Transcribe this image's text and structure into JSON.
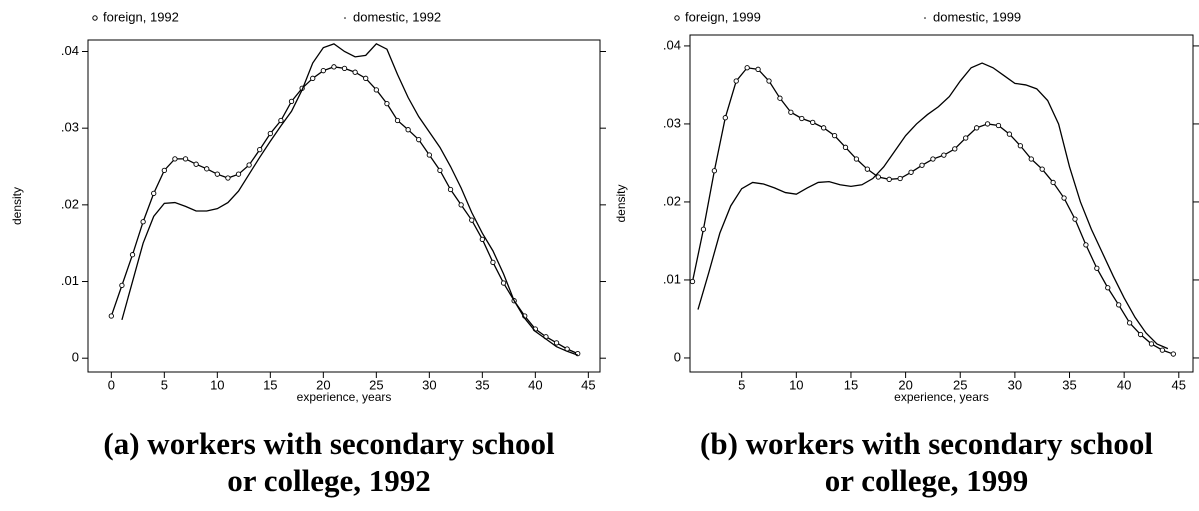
{
  "chart_data": [
    {
      "type": "line",
      "caption": [
        "(a) workers with secondary school",
        "or college, 1992"
      ],
      "xlabel": "experience, years",
      "ylabel": "density",
      "xlim": [
        -2.2,
        46.1
      ],
      "ylim": [
        -0.0018,
        0.0415
      ],
      "xticks": [
        0,
        5,
        10,
        15,
        20,
        25,
        30,
        35,
        40,
        45
      ],
      "yticks": [
        0,
        {
          "value": 0.01,
          "label": ".01"
        },
        {
          "value": 0.02,
          "label": ".02"
        },
        {
          "value": 0.03,
          "label": ".03"
        },
        {
          "value": 0.04,
          "label": ".04"
        }
      ],
      "series": [
        {
          "name": "foreign, 1992",
          "color": "#000",
          "marker": "circle",
          "x": [
            0,
            1,
            2,
            3,
            4,
            5,
            6,
            7,
            8,
            9,
            10,
            11,
            12,
            13,
            14,
            15,
            16,
            17,
            18,
            19,
            20,
            21,
            22,
            23,
            24,
            25,
            26,
            27,
            28,
            29,
            30,
            31,
            32,
            33,
            34,
            35,
            36,
            37,
            38,
            39,
            40,
            41,
            42,
            43,
            44
          ],
          "values": [
            0.0055,
            0.0095,
            0.0135,
            0.0178,
            0.0215,
            0.0245,
            0.026,
            0.026,
            0.0253,
            0.0247,
            0.024,
            0.0235,
            0.024,
            0.0252,
            0.0272,
            0.0293,
            0.031,
            0.0335,
            0.0352,
            0.0365,
            0.0375,
            0.038,
            0.0378,
            0.0373,
            0.0365,
            0.035,
            0.0332,
            0.031,
            0.0298,
            0.0285,
            0.0265,
            0.0245,
            0.022,
            0.02,
            0.018,
            0.0155,
            0.0125,
            0.0098,
            0.0075,
            0.0055,
            0.0038,
            0.0028,
            0.002,
            0.0012,
            0.0006
          ]
        },
        {
          "name": "domestic, 1992",
          "color": "#000",
          "marker": "dot",
          "x": [
            1,
            2,
            3,
            4,
            5,
            6,
            7,
            8,
            9,
            10,
            11,
            12,
            13,
            14,
            15,
            16,
            17,
            18,
            19,
            20,
            21,
            22,
            23,
            24,
            25,
            26,
            27,
            28,
            29,
            30,
            31,
            32,
            33,
            34,
            35,
            36,
            37,
            38,
            39,
            40,
            41,
            42,
            43,
            44
          ],
          "values": [
            0.005,
            0.01,
            0.015,
            0.0185,
            0.0202,
            0.0203,
            0.0198,
            0.0192,
            0.0192,
            0.0195,
            0.0203,
            0.0218,
            0.024,
            0.0262,
            0.0283,
            0.0303,
            0.0322,
            0.035,
            0.0385,
            0.0405,
            0.041,
            0.04,
            0.0393,
            0.0395,
            0.041,
            0.0403,
            0.037,
            0.034,
            0.0315,
            0.0295,
            0.0275,
            0.025,
            0.0222,
            0.019,
            0.0163,
            0.014,
            0.011,
            0.0075,
            0.0052,
            0.0035,
            0.0025,
            0.0015,
            0.0009,
            0.0004
          ]
        }
      ]
    },
    {
      "type": "line",
      "caption": [
        "(b) workers with secondary school",
        "or college, 1999"
      ],
      "xlabel": "experience, years",
      "ylabel": "density",
      "xlim": [
        0.27,
        46.3
      ],
      "ylim": [
        -0.0018,
        0.0414
      ],
      "xticks": [
        5,
        10,
        15,
        20,
        25,
        30,
        35,
        40,
        45
      ],
      "yticks": [
        0,
        {
          "value": 0.01,
          "label": ".01"
        },
        {
          "value": 0.02,
          "label": ".02"
        },
        {
          "value": 0.03,
          "label": ".03"
        },
        {
          "value": 0.04,
          "label": ".04"
        }
      ],
      "series": [
        {
          "name": "foreign, 1999",
          "color": "#000",
          "marker": "circle",
          "x": [
            0.5,
            1.5,
            2.5,
            3.5,
            4.5,
            5.5,
            6.5,
            7.5,
            8.5,
            9.5,
            10.5,
            11.5,
            12.5,
            13.5,
            14.5,
            15.5,
            16.5,
            17.5,
            18.5,
            19.5,
            20.5,
            21.5,
            22.5,
            23.5,
            24.5,
            25.5,
            26.5,
            27.5,
            28.5,
            29.5,
            30.5,
            31.5,
            32.5,
            33.5,
            34.5,
            35.5,
            36.5,
            37.5,
            38.5,
            39.5,
            40.5,
            41.5,
            42.5,
            43.5,
            44.5
          ],
          "values": [
            0.0098,
            0.0165,
            0.024,
            0.0308,
            0.0355,
            0.0372,
            0.037,
            0.0355,
            0.0333,
            0.0315,
            0.0307,
            0.0302,
            0.0295,
            0.0285,
            0.027,
            0.0255,
            0.0242,
            0.0232,
            0.0229,
            0.023,
            0.0238,
            0.0247,
            0.0255,
            0.026,
            0.0268,
            0.0282,
            0.0295,
            0.03,
            0.0298,
            0.0287,
            0.0272,
            0.0255,
            0.0242,
            0.0225,
            0.0205,
            0.0178,
            0.0145,
            0.0115,
            0.009,
            0.0068,
            0.0045,
            0.003,
            0.0018,
            0.001,
            0.0005
          ]
        },
        {
          "name": "domestic, 1999",
          "color": "#000",
          "marker": "dot",
          "x": [
            1,
            2,
            3,
            4,
            5,
            6,
            7,
            8,
            9,
            10,
            11,
            12,
            13,
            14,
            15,
            16,
            17,
            18,
            19,
            20,
            21,
            22,
            23,
            24,
            25,
            26,
            27,
            28,
            29,
            30,
            31,
            32,
            33,
            34,
            35,
            36,
            37,
            38,
            39,
            40,
            41,
            42,
            43,
            44
          ],
          "values": [
            0.0062,
            0.011,
            0.016,
            0.0195,
            0.0217,
            0.0225,
            0.0223,
            0.0218,
            0.0212,
            0.021,
            0.0218,
            0.0225,
            0.0226,
            0.0222,
            0.022,
            0.0222,
            0.023,
            0.0245,
            0.0265,
            0.0285,
            0.03,
            0.0312,
            0.0322,
            0.0335,
            0.0355,
            0.0372,
            0.0378,
            0.0372,
            0.0362,
            0.0352,
            0.035,
            0.0345,
            0.033,
            0.03,
            0.0245,
            0.02,
            0.0165,
            0.0135,
            0.0105,
            0.0077,
            0.0052,
            0.0032,
            0.0018,
            0.0012
          ]
        }
      ]
    }
  ]
}
